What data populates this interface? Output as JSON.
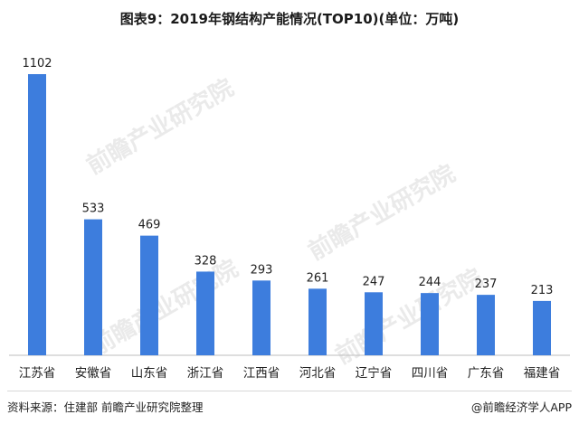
{
  "chart_data": {
    "type": "bar",
    "title": "图表9：2019年钢结构产能情况(TOP10)(单位：万吨)",
    "categories": [
      "江苏省",
      "安徽省",
      "山东省",
      "浙江省",
      "江西省",
      "河北省",
      "辽宁省",
      "四川省",
      "广东省",
      "福建省"
    ],
    "values": [
      1102,
      533,
      469,
      328,
      293,
      261,
      247,
      244,
      237,
      213
    ],
    "ylim": [
      0,
      1102
    ],
    "grid": false,
    "bar_color": "#3d7ddd"
  },
  "footer": {
    "source": "资料来源：住建部  前瞻产业研究院整理",
    "brand": "@前瞻经济学人APP"
  },
  "watermark": "前瞻产业研究院"
}
